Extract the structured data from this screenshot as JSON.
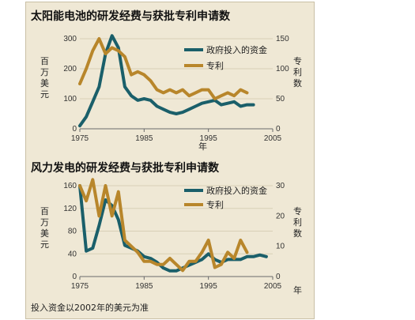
{
  "chart_data": [
    {
      "type": "line",
      "title": "太阳能电池的研发经费与获批专利申请数",
      "ylabel_left": "百万美元",
      "ylabel_right": "专利数",
      "xlabel": "年",
      "x_ticks": [
        1975,
        1985,
        1995,
        2005
      ],
      "xlim": [
        1975,
        2005
      ],
      "ylim_left": [
        0,
        300
      ],
      "ylim_right": [
        0,
        150
      ],
      "yticks_left": [
        0,
        100,
        200,
        300
      ],
      "yticks_right": [
        0,
        50,
        100,
        150
      ],
      "legend_position": "top-right",
      "grid": true,
      "series": [
        {
          "name": "政府投入的资金",
          "axis": "left",
          "color": "#1a5f6a",
          "x": [
            1975,
            1976,
            1977,
            1978,
            1979,
            1980,
            1981,
            1982,
            1983,
            1984,
            1985,
            1986,
            1987,
            1988,
            1989,
            1990,
            1991,
            1992,
            1993,
            1994,
            1995,
            1996,
            1997,
            1998,
            1999,
            2000,
            2001,
            2002
          ],
          "y": [
            10,
            40,
            90,
            140,
            250,
            310,
            270,
            140,
            110,
            95,
            100,
            95,
            75,
            65,
            55,
            50,
            55,
            65,
            75,
            85,
            90,
            95,
            80,
            85,
            90,
            75,
            80,
            80
          ]
        },
        {
          "name": "专利",
          "axis": "right",
          "color": "#b8862b",
          "x": [
            1975,
            1976,
            1977,
            1978,
            1979,
            1980,
            1981,
            1982,
            1983,
            1984,
            1985,
            1986,
            1987,
            1988,
            1989,
            1990,
            1991,
            1992,
            1993,
            1994,
            1995,
            1996,
            1997,
            1998,
            1999,
            2000,
            2001
          ],
          "y": [
            75,
            100,
            130,
            150,
            125,
            135,
            130,
            120,
            90,
            95,
            90,
            80,
            65,
            60,
            65,
            60,
            65,
            55,
            60,
            65,
            65,
            50,
            55,
            60,
            55,
            65,
            60
          ]
        }
      ]
    },
    {
      "type": "line",
      "title": "风力发电的研发经费与获批专利申请数",
      "ylabel_left": "百万美元",
      "ylabel_right": "专利数",
      "xlabel": "年",
      "x_ticks": [
        1975,
        1985,
        1995,
        2005
      ],
      "xlim": [
        1975,
        2005
      ],
      "ylim_left": [
        0,
        160
      ],
      "ylim_right": [
        0,
        30
      ],
      "yticks_left": [
        0,
        40,
        80,
        120,
        160
      ],
      "yticks_right": [
        0,
        10,
        20,
        30
      ],
      "legend_position": "top-right",
      "grid": true,
      "series": [
        {
          "name": "政府投入的资金",
          "axis": "left",
          "color": "#1a5f6a",
          "x": [
            1975,
            1976,
            1977,
            1978,
            1979,
            1980,
            1981,
            1982,
            1983,
            1984,
            1985,
            1986,
            1987,
            1988,
            1989,
            1990,
            1991,
            1992,
            1993,
            1994,
            1995,
            1996,
            1997,
            1998,
            1999,
            2000,
            2001,
            2002,
            2003,
            2004
          ],
          "y": [
            160,
            45,
            50,
            90,
            135,
            125,
            100,
            55,
            50,
            45,
            35,
            32,
            25,
            15,
            10,
            10,
            15,
            20,
            25,
            30,
            40,
            30,
            25,
            30,
            30,
            30,
            35,
            35,
            38,
            35
          ]
        },
        {
          "name": "专利",
          "axis": "right",
          "color": "#b8862b",
          "x": [
            1975,
            1976,
            1977,
            1978,
            1979,
            1980,
            1981,
            1982,
            1983,
            1984,
            1985,
            1986,
            1987,
            1988,
            1989,
            1990,
            1991,
            1992,
            1993,
            1994,
            1995,
            1996,
            1997,
            1998,
            1999,
            2000,
            2001
          ],
          "y": [
            30,
            25,
            32,
            20,
            30,
            20,
            28,
            12,
            10,
            8,
            5,
            5,
            4,
            4,
            6,
            4,
            2,
            5,
            5,
            8,
            12,
            3,
            4,
            8,
            6,
            12,
            8
          ]
        }
      ]
    }
  ],
  "note": "投入资金以2002年的美元为准"
}
